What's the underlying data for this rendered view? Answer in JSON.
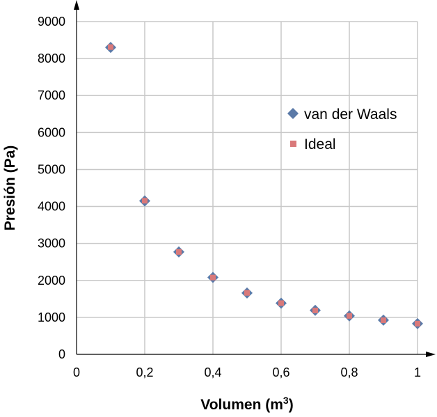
{
  "chart_data": {
    "type": "scatter",
    "xlabel": "Volumen (m",
    "xlabel_sup": "3",
    "xlabel_suffix": ")",
    "ylabel": "Presión (Pa)",
    "xlim": [
      0,
      1
    ],
    "ylim": [
      0,
      9000
    ],
    "x_ticks": [
      0,
      0.2,
      0.4,
      0.6,
      0.8,
      1
    ],
    "x_tick_labels": [
      "0",
      "0,2",
      "0,4",
      "0,6",
      "0,8",
      "1"
    ],
    "y_ticks": [
      0,
      1000,
      2000,
      3000,
      4000,
      5000,
      6000,
      7000,
      8000,
      9000
    ],
    "y_tick_labels": [
      "0",
      "1000",
      "2000",
      "3000",
      "4000",
      "5000",
      "6000",
      "7000",
      "8000",
      "9000"
    ],
    "grid": true,
    "legend_position": "upper-right",
    "series": [
      {
        "name": "van der Waals",
        "marker": "diamond",
        "color": "#5b7aa8",
        "x": [
          0.1,
          0.2,
          0.3,
          0.4,
          0.5,
          0.6,
          0.7,
          0.8,
          0.9,
          1.0
        ],
        "y": [
          8300,
          4150,
          2770,
          2080,
          1660,
          1385,
          1190,
          1040,
          925,
          830
        ]
      },
      {
        "name": "Ideal",
        "marker": "square",
        "color": "#d9797a",
        "x": [
          0.1,
          0.2,
          0.3,
          0.4,
          0.5,
          0.6,
          0.7,
          0.8,
          0.9,
          1.0
        ],
        "y": [
          8310,
          4155,
          2770,
          2078,
          1662,
          1385,
          1187,
          1039,
          923,
          831
        ]
      }
    ]
  }
}
